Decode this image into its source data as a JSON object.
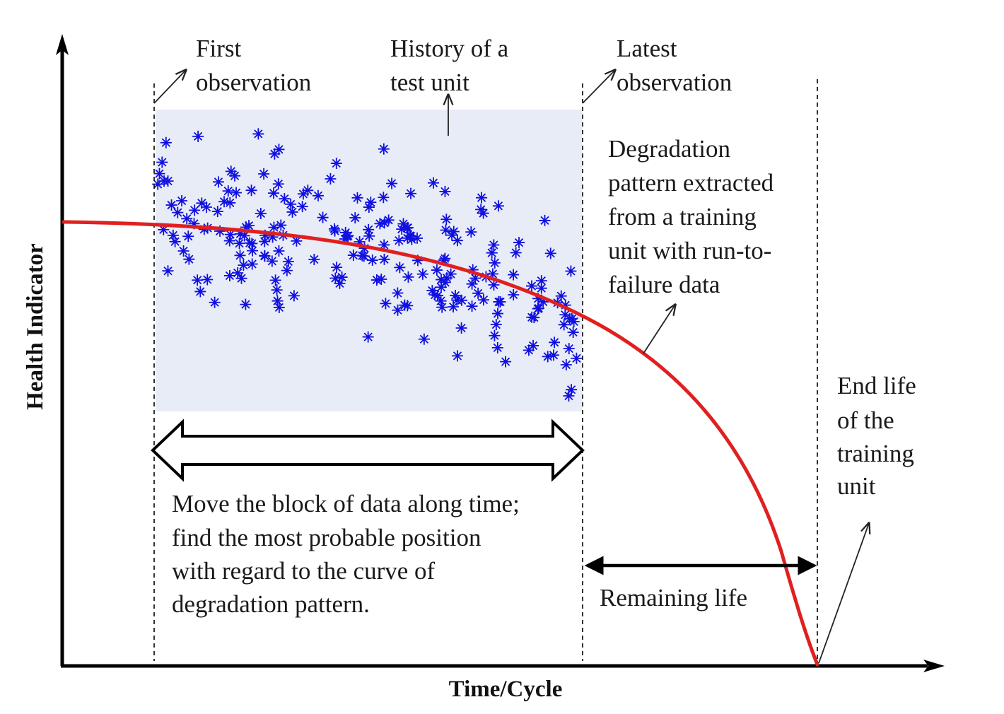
{
  "axes": {
    "x_label": "Time/Cycle",
    "y_label": "Health Indicator"
  },
  "labels": {
    "first_observation": [
      "First",
      "observation"
    ],
    "history": [
      "History of a",
      "test unit"
    ],
    "latest_observation": [
      "Latest",
      "observation"
    ],
    "degradation": [
      "Degradation",
      "pattern extracted",
      "from a training",
      "unit with run-to-",
      "failure data"
    ],
    "end_life": [
      "End life",
      "of the",
      "training",
      "unit"
    ],
    "move_block": [
      "Move the block of data along time;",
      "find the most probable position",
      "with regard to the curve of",
      "degradation pattern."
    ],
    "remaining_life": "Remaining life"
  },
  "colors": {
    "curve": "#e02020",
    "markers": "#1010e0",
    "block": "#e8ecf6",
    "ink": "#000000"
  },
  "icons": {
    "marker": "asterisk",
    "arrows": [
      "double-arrow-outline",
      "double-arrow-solid",
      "pointer-arrow"
    ]
  }
}
